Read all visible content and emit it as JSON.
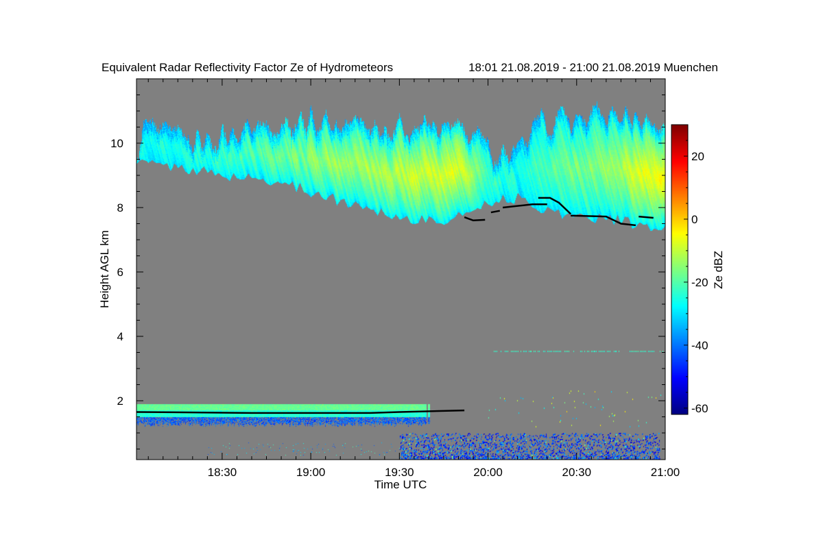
{
  "chart_data": {
    "type": "heatmap",
    "title": "Equivalent Radar Reflectivity Factor Ze of Hydrometeors",
    "period": "18:01 21.08.2019 - 21:00 21.08.2019 Muenchen",
    "xlabel": "Time UTC",
    "ylabel": "Height AGL km",
    "x_unit": "minutes after 18:00 UTC",
    "xlim": [
      1,
      180
    ],
    "x_ticks": [
      {
        "value": 30,
        "label": "18:30"
      },
      {
        "value": 60,
        "label": "19:00"
      },
      {
        "value": 90,
        "label": "19:30"
      },
      {
        "value": 120,
        "label": "20:00"
      },
      {
        "value": 150,
        "label": "20:30"
      },
      {
        "value": 180,
        "label": "21:00"
      }
    ],
    "ylim": [
      0.17,
      12
    ],
    "y_ticks": [
      {
        "value": 2,
        "label": "2"
      },
      {
        "value": 4,
        "label": "4"
      },
      {
        "value": 6,
        "label": "6"
      },
      {
        "value": 8,
        "label": "8"
      },
      {
        "value": 10,
        "label": "10"
      }
    ],
    "background_color": "#808080",
    "colorbar": {
      "label": "Ze dBZ",
      "colormap": "jet",
      "clim": [
        -62,
        30
      ],
      "ticks": [
        {
          "value": 20,
          "label": "20"
        },
        {
          "value": 0,
          "label": "0"
        },
        {
          "value": -20,
          "label": "-20"
        },
        {
          "value": -40,
          "label": "-40"
        },
        {
          "value": -60,
          "label": "-60"
        }
      ]
    },
    "upper_cloud": {
      "columns": [
        "time_min",
        "top_km",
        "base_km",
        "core_dBZ"
      ],
      "profile": [
        [
          1,
          9.6,
          9.4,
          -25
        ],
        [
          4,
          10.6,
          9.4,
          -25
        ],
        [
          10,
          10.2,
          9.3,
          -25
        ],
        [
          20,
          10.0,
          9.2,
          -25
        ],
        [
          30,
          10.2,
          9.0,
          -22
        ],
        [
          40,
          10.5,
          8.9,
          -20
        ],
        [
          50,
          10.7,
          8.8,
          -18
        ],
        [
          60,
          10.7,
          8.5,
          -15
        ],
        [
          70,
          10.6,
          8.2,
          -12
        ],
        [
          80,
          10.6,
          8.0,
          -12
        ],
        [
          90,
          10.5,
          7.7,
          -10
        ],
        [
          100,
          10.5,
          7.6,
          -8
        ],
        [
          108,
          10.4,
          7.6,
          -6
        ],
        [
          115,
          10.3,
          8.0,
          -15
        ],
        [
          120,
          9.8,
          8.2,
          -22
        ],
        [
          130,
          9.6,
          8.3,
          -25
        ],
        [
          138,
          10.6,
          8.0,
          -20
        ],
        [
          145,
          10.7,
          7.8,
          -18
        ],
        [
          155,
          10.8,
          7.7,
          -15
        ],
        [
          165,
          10.8,
          7.6,
          -12
        ],
        [
          172,
          10.8,
          7.4,
          -5
        ],
        [
          180,
          10.5,
          7.3,
          -5
        ]
      ]
    },
    "lower_layer": {
      "t_start": 1,
      "t_end": 98,
      "top_km": 1.9,
      "base_km": 1.35,
      "top_dBZ": -18,
      "mid_dBZ": -24,
      "base_dBZ": -42
    },
    "cloud_base_lines": [
      [
        [
          1,
          1.65
        ],
        [
          40,
          1.62
        ],
        [
          80,
          1.62
        ],
        [
          90,
          1.65
        ],
        [
          112,
          1.7
        ]
      ],
      [
        [
          112,
          7.7
        ],
        [
          115,
          7.6
        ],
        [
          119,
          7.62
        ]
      ],
      [
        [
          121,
          7.85
        ],
        [
          124,
          7.9
        ]
      ],
      [
        [
          125,
          8.0
        ],
        [
          130,
          8.05
        ],
        [
          135,
          8.1
        ],
        [
          140,
          8.1
        ]
      ],
      [
        [
          137,
          8.3
        ],
        [
          141,
          8.3
        ],
        [
          144,
          8.15
        ],
        [
          148,
          7.8
        ]
      ],
      [
        [
          148,
          7.75
        ],
        [
          160,
          7.72
        ],
        [
          165,
          7.5
        ],
        [
          170,
          7.45
        ]
      ],
      [
        [
          171,
          7.72
        ],
        [
          176,
          7.68
        ]
      ]
    ],
    "speckle_line": {
      "t_start": 122,
      "t_end": 180,
      "height_km": 3.55,
      "dBZ": -25
    },
    "ground_clutter": {
      "t_start": 90,
      "t_end": 178,
      "h_min": 0.2,
      "h_max": 1.0,
      "dBZ": -45
    }
  }
}
